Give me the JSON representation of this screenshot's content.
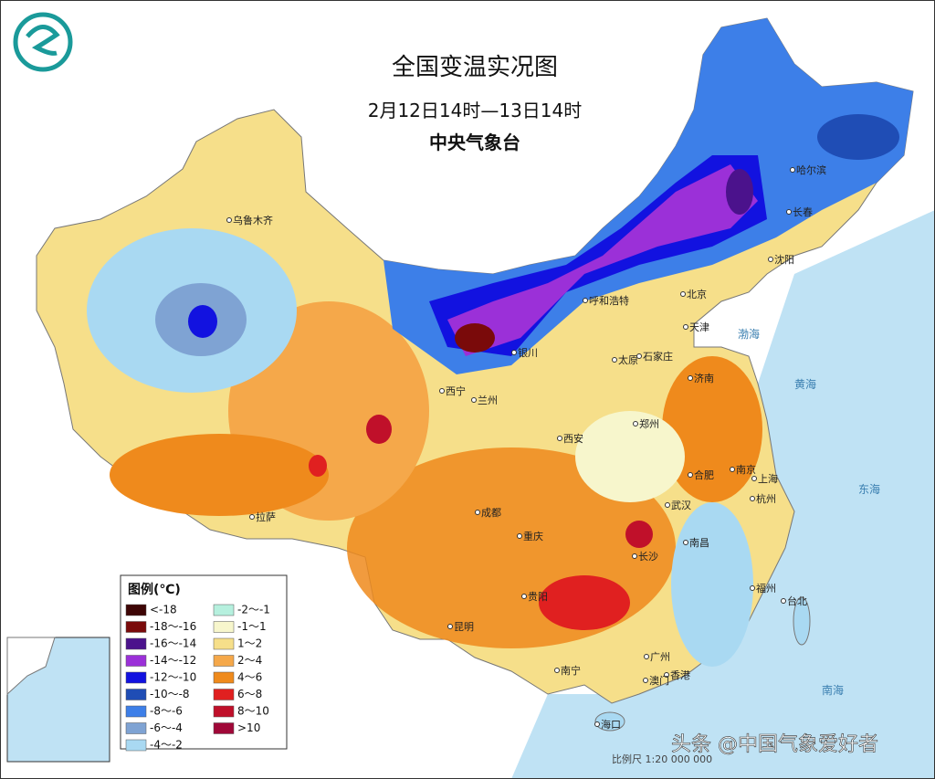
{
  "header": {
    "title": "全国变温实况图",
    "subtitle": "2月12日14时—13日14时",
    "issuer": "中央气象台"
  },
  "legend": {
    "title": "图例(℃)",
    "items": [
      {
        "label": "<-18",
        "color": "#3d0505"
      },
      {
        "label": "-18～-16",
        "color": "#7a0a0a"
      },
      {
        "label": "-16～-14",
        "color": "#4b128c"
      },
      {
        "label": "-14～-12",
        "color": "#9b30d8"
      },
      {
        "label": "-12～-10",
        "color": "#1212e0"
      },
      {
        "label": "-10～-8",
        "color": "#1f4db5"
      },
      {
        "label": "-8～-6",
        "color": "#3d7fe8"
      },
      {
        "label": "-6～-4",
        "color": "#7fa3d3"
      },
      {
        "label": "-4～-2",
        "color": "#a9d9f2"
      },
      {
        "label": "-2～-1",
        "color": "#b6f0de"
      },
      {
        "label": "-1～1",
        "color": "#f7f6cc"
      },
      {
        "label": "1～2",
        "color": "#f6df8a"
      },
      {
        "label": "2～4",
        "color": "#f5a84a"
      },
      {
        "label": "4～6",
        "color": "#ef8a1c"
      },
      {
        "label": "6～8",
        "color": "#e02020"
      },
      {
        "label": "8～10",
        "color": "#c0102a"
      },
      {
        "label": ">10",
        "color": "#a00838"
      }
    ]
  },
  "cities": [
    "乌鲁木齐",
    "哈尔滨",
    "长春",
    "沈阳",
    "呼和浩特",
    "北京",
    "天津",
    "银川",
    "太原",
    "石家庄",
    "济南",
    "西宁",
    "兰州",
    "郑州",
    "西安",
    "合肥",
    "南京",
    "上海",
    "杭州",
    "武汉",
    "成都",
    "重庆",
    "长沙",
    "南昌",
    "拉萨",
    "贵阳",
    "福州",
    "台北",
    "昆明",
    "南宁",
    "广州",
    "香港",
    "澳门",
    "海口"
  ],
  "seas": [
    "渤海",
    "黄海",
    "东海",
    "南海"
  ],
  "scale": "比例尺 1:20 000 000",
  "watermark": "头条 @中国气象爱好者"
}
